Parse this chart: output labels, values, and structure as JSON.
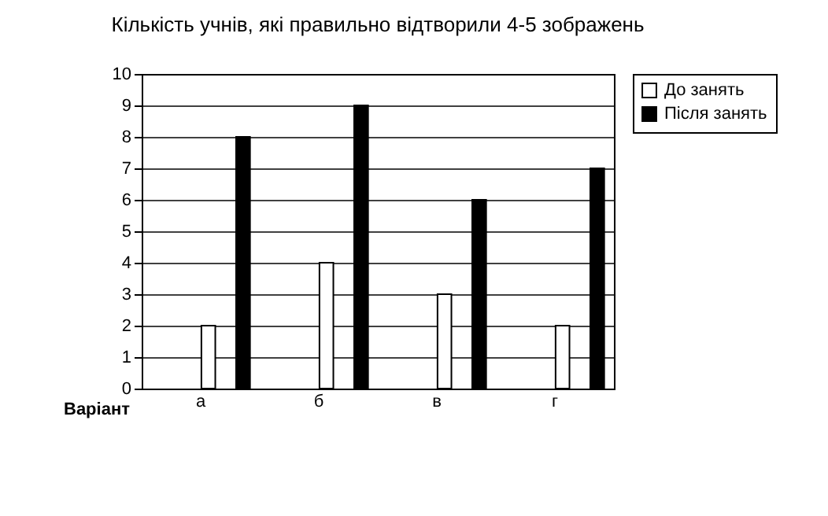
{
  "chart_data": {
    "type": "bar",
    "title": "Кількість учнів, які правильно відтворили 4-5 зображень",
    "xlabel": "Варіант",
    "categories": [
      "а",
      "б",
      "в",
      "г"
    ],
    "series": [
      {
        "name": "До занять",
        "color": "#ffffff",
        "values": [
          2,
          4,
          3,
          2
        ]
      },
      {
        "name": "Після занять",
        "color": "#000000",
        "values": [
          8,
          9,
          6,
          7
        ]
      }
    ],
    "ylim": [
      0,
      10
    ],
    "yticks": [
      0,
      1,
      2,
      3,
      4,
      5,
      6,
      7,
      8,
      9,
      10
    ],
    "grid": "y",
    "legend": "right"
  }
}
